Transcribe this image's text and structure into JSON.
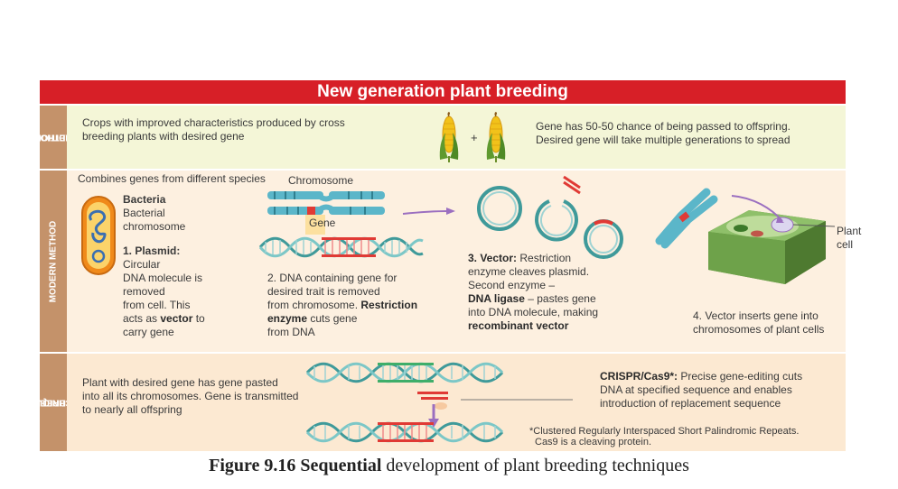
{
  "banner": "New generation plant breeding",
  "traditional": {
    "label_line1": "TRADITIONAL",
    "label_line2": "METHOD",
    "left_line1": "Crops with improved characteristics produced by cross",
    "left_line2": "breeding plants with desired gene",
    "plus": "+",
    "right_line1": "Gene has 50-50 chance of being passed to offspring.",
    "right_line2": "Desired gene will take multiple generations to spread"
  },
  "modern": {
    "label": "MODERN METHOD",
    "combines": "Combines genes from different species",
    "bacteria_title": "Bacteria",
    "bacterial_line1": "Bacterial",
    "bacterial_line2": "chromosome",
    "plasmid_title": "1. Plasmid:",
    "plasmid_lines": [
      "Circular",
      "DNA molecule is",
      "removed",
      "from cell. This"
    ],
    "vector_pre": "acts as ",
    "vector_word": "vector",
    "vector_post": " to",
    "carry_gene": "carry gene",
    "chromosome_label": "Chromosome",
    "gene_label": "Gene",
    "step2_line1": "2. DNA containing gene for",
    "step2_line2": "desired trait is removed",
    "step2_line3_pre": "from chromosome. ",
    "step2_line3_bold": "Restriction",
    "step2_line4_bold": "enzyme",
    "step2_line4_post": " cuts gene",
    "step2_line5": "from DNA",
    "step3_title": "3. Vector:",
    "step3_title_post": " Restriction",
    "step3_line2": "enzyme cleaves plasmid.",
    "step3_line3": "Second enzyme –",
    "step3_line4_bold": "DNA ligase",
    "step3_line4_post": " – pastes gene",
    "step3_line5": "into DNA molecule, making",
    "step3_line6_bold": "recombinant vector",
    "plant_cell_label": "Plant cell",
    "step4_line1": "4. Vector inserts gene into",
    "step4_line2": "chromosomes of plant cells"
  },
  "newbreeding": {
    "label_line1": "NEW BREEDING",
    "label_line2": "TECHNIQUES",
    "left_line1": "Plant with desired gene has gene pasted",
    "left_line2": "into all its chromosomes. Gene is transmitted",
    "left_line3": "to nearly all offspring",
    "crispr_bold": "CRISPR/Cas9*:",
    "crispr_line1_post": " Precise gene-editing cuts",
    "crispr_line2": "DNA at specified sequence and enables",
    "crispr_line3": "introduction of replacement sequence",
    "footnote_line1": "*Clustered Regularly Interspaced Short Palindromic Repeats.",
    "footnote_line2": "Cas9 is a cleaving protein."
  },
  "caption": {
    "bold": "Figure 9.16 Sequential",
    "rest": " development of plant breeding techniques"
  },
  "colors": {
    "banner": "#d71f27",
    "side_label": "#c4926a",
    "traditional_bg": "#f4f6d7",
    "modern_bg": "#fdf0e0",
    "new_bg": "#fce9d2",
    "dna_teal": "#3f9a9a",
    "gene_red": "#e03a35",
    "arrow_purple": "#9b6fc0"
  }
}
